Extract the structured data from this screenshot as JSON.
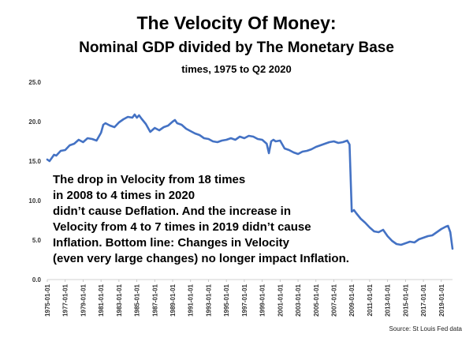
{
  "chart_data": {
    "type": "line",
    "title": "The Velocity Of Money:",
    "subtitle": "Nominal GDP divided by The Monetary Base",
    "subsubtitle": "times, 1975 to Q2 2020",
    "xlabel": "",
    "ylabel": "",
    "ylim": [
      0,
      25
    ],
    "yticks": [
      "0.0",
      "5.0",
      "10.0",
      "15.0",
      "20.0",
      "25.0"
    ],
    "xticks": [
      "1975-01-01",
      "1977-01-01",
      "1979-01-01",
      "1981-01-01",
      "1983-01-01",
      "1985-01-01",
      "1987-01-01",
      "1989-01-01",
      "1991-01-01",
      "1993-01-01",
      "1995-01-01",
      "1997-01-01",
      "1999-01-01",
      "2001-01-01",
      "2003-01-01",
      "2005-01-01",
      "2007-01-01",
      "2009-01-01",
      "2011-01-01",
      "2013-01-01",
      "2015-01-01",
      "2017-01-01",
      "2019-01-01"
    ],
    "grid": false,
    "line_color": "#4472c4",
    "series": [
      {
        "x": [
          1975.0,
          1975.25,
          1975.5,
          1975.75,
          1976.0,
          1976.5,
          1977.0,
          1977.5,
          1978.0,
          1978.5,
          1979.0,
          1979.5,
          1980.0,
          1980.5,
          1981.0,
          1981.25,
          1981.5,
          1982.0,
          1982.5,
          1983.0,
          1983.5,
          1984.0,
          1984.5,
          1984.75,
          1985.0,
          1985.25,
          1985.5,
          1986.0,
          1986.5,
          1987.0,
          1987.5,
          1988.0,
          1988.5,
          1989.0,
          1989.25,
          1989.5,
          1990.0,
          1990.5,
          1991.0,
          1991.5,
          1992.0,
          1992.5,
          1993.0,
          1993.5,
          1994.0,
          1994.5,
          1995.0,
          1995.5,
          1996.0,
          1996.5,
          1997.0,
          1997.5,
          1998.0,
          1998.5,
          1999.0,
          1999.5,
          1999.75,
          2000.0,
          2000.25,
          2000.5,
          2001.0,
          2001.5,
          2002.0,
          2002.5,
          2003.0,
          2003.5,
          2004.0,
          2004.5,
          2005.0,
          2005.5,
          2006.0,
          2006.5,
          2007.0,
          2007.5,
          2008.0,
          2008.5,
          2008.75,
          2009.0,
          2009.25,
          2009.5,
          2010.0,
          2010.5,
          2011.0,
          2011.5,
          2012.0,
          2012.5,
          2013.0,
          2013.5,
          2014.0,
          2014.5,
          2015.0,
          2015.5,
          2016.0,
          2016.5,
          2017.0,
          2017.5,
          2018.0,
          2018.5,
          2019.0,
          2019.5,
          2019.75,
          2020.0,
          2020.25
        ],
        "values": [
          15.2,
          15.0,
          15.4,
          15.8,
          15.7,
          16.3,
          16.4,
          17.0,
          17.2,
          17.7,
          17.4,
          17.9,
          17.8,
          17.6,
          18.6,
          19.6,
          19.8,
          19.5,
          19.3,
          19.9,
          20.3,
          20.6,
          20.5,
          20.9,
          20.5,
          20.8,
          20.4,
          19.7,
          18.7,
          19.2,
          18.9,
          19.3,
          19.5,
          20.0,
          20.2,
          19.8,
          19.6,
          19.1,
          18.8,
          18.5,
          18.3,
          17.9,
          17.8,
          17.5,
          17.4,
          17.6,
          17.7,
          17.9,
          17.7,
          18.1,
          17.9,
          18.2,
          18.1,
          17.8,
          17.7,
          17.2,
          16.0,
          17.5,
          17.7,
          17.5,
          17.6,
          16.6,
          16.4,
          16.1,
          15.9,
          16.2,
          16.3,
          16.5,
          16.8,
          17.0,
          17.2,
          17.4,
          17.5,
          17.3,
          17.4,
          17.6,
          17.1,
          8.6,
          8.8,
          8.4,
          7.7,
          7.2,
          6.6,
          6.1,
          6.0,
          6.3,
          5.5,
          4.9,
          4.5,
          4.4,
          4.6,
          4.8,
          4.7,
          5.1,
          5.3,
          5.5,
          5.6,
          6.0,
          6.4,
          6.7,
          6.8,
          6.0,
          3.9
        ]
      }
    ]
  },
  "annotation": {
    "lines": [
      "The drop in Velocity from 18 times",
      "in 2008 to 4 times in 2020",
      "didn’t cause Deflation.  And the increase in",
      "Velocity from 4 to 7 times in 2019 didn’t cause",
      "Inflation.  Bottom line: Changes in Velocity",
      "(even very large changes) no longer impact Inflation."
    ]
  },
  "source": "Source: St Louis Fed data"
}
